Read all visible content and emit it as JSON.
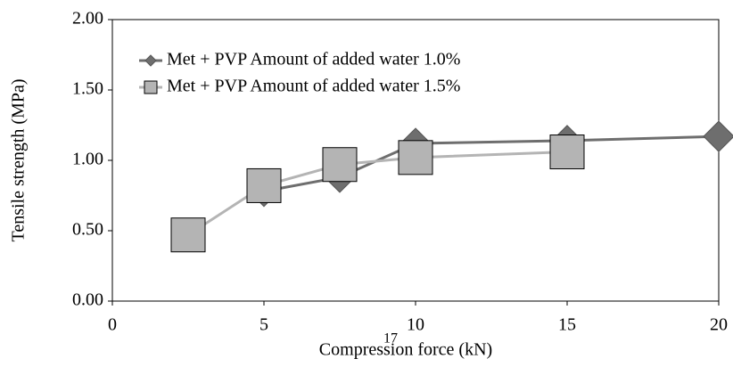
{
  "chart_data": {
    "type": "line",
    "x_label": "Compression force (kN)",
    "y_label": "Tensile strength  (MPa)",
    "xlim": [
      0,
      20
    ],
    "xticks": [
      0,
      5,
      10,
      15,
      20
    ],
    "ylim": [
      0,
      2
    ],
    "yticks": [
      {
        "value": 0,
        "label": "0.00"
      },
      {
        "value": 0.5,
        "label": "0.50"
      },
      {
        "value": 1,
        "label": "1.00"
      },
      {
        "value": 1.5,
        "label": "1.50"
      },
      {
        "value": 2,
        "label": "2.00"
      }
    ],
    "legend": "upper left",
    "series": [
      {
        "name": "Met + PVP Amount of added water 1.0%",
        "color": "#6e6e6e",
        "marker": "diamond",
        "x": [
          5,
          7.5,
          10,
          15,
          20
        ],
        "values": [
          0.78,
          0.88,
          1.12,
          1.14,
          1.17
        ]
      },
      {
        "name": "Met + PVP Amount of added water 1.5%",
        "color": "#b4b4b4",
        "marker": "square",
        "x": [
          2.5,
          5,
          7.5,
          10,
          15
        ],
        "values": [
          0.47,
          0.82,
          0.97,
          1.02,
          1.06
        ]
      }
    ]
  },
  "page_number": "17"
}
